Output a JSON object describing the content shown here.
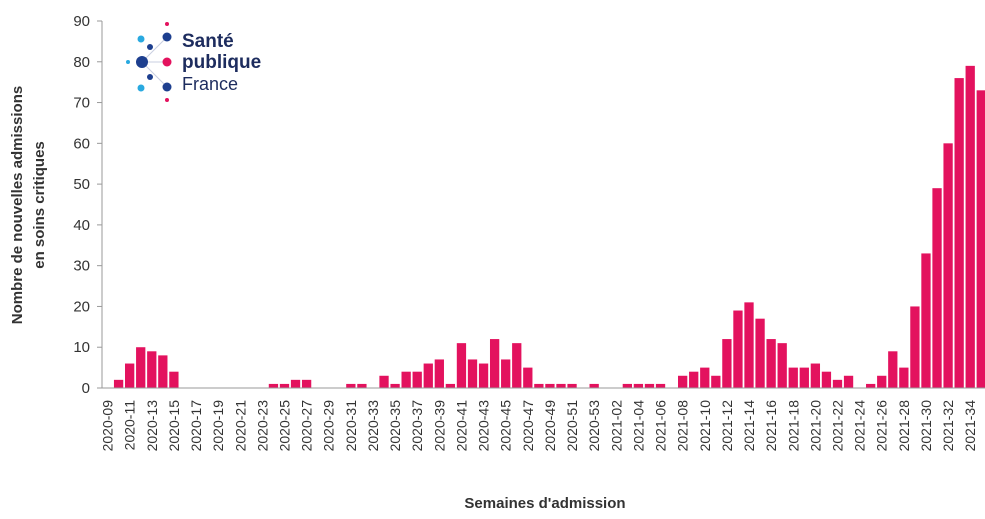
{
  "chart_data": {
    "type": "bar",
    "y_label": [
      "Nombre de nouvelles admissions",
      "en soins critiques"
    ],
    "x_label": "Semaines d'admission",
    "logo": [
      "Santé",
      "publique",
      "France"
    ],
    "color": "#e3125e",
    "categories": [
      "2020-09",
      null,
      "2020-11",
      null,
      "2020-13",
      null,
      "2020-15",
      null,
      "2020-17",
      null,
      "2020-19",
      null,
      "2020-21",
      null,
      "2020-23",
      null,
      "2020-25",
      null,
      "2020-27",
      null,
      "2020-29",
      null,
      "2020-31",
      null,
      "2020-33",
      null,
      "2020-35",
      null,
      "2020-37",
      null,
      "2020-39",
      null,
      "2020-41",
      null,
      "2020-43",
      null,
      "2020-45",
      null,
      "2020-47",
      null,
      "2020-49",
      null,
      "2020-51",
      null,
      "2020-53",
      null,
      "2021-02",
      null,
      "2021-04",
      null,
      "2021-06",
      null,
      "2021-08",
      null,
      "2021-10",
      null,
      "2021-12",
      null,
      "2021-14",
      null,
      "2021-16",
      null,
      "2021-18",
      null,
      "2021-20",
      null,
      "2021-22",
      null,
      "2021-24",
      null,
      "2021-26",
      null,
      "2021-28",
      null,
      "2021-30",
      null,
      "2021-32",
      null,
      "2021-34",
      null
    ],
    "values": [
      0,
      2,
      6,
      10,
      9,
      8,
      4,
      0,
      0,
      0,
      0,
      0,
      0,
      0,
      0,
      1,
      1,
      2,
      2,
      0,
      0,
      0,
      1,
      1,
      0,
      3,
      1,
      4,
      4,
      6,
      7,
      1,
      11,
      7,
      6,
      12,
      7,
      11,
      5,
      1,
      1,
      1,
      1,
      0,
      1,
      0,
      0,
      1,
      1,
      1,
      1,
      0,
      3,
      4,
      5,
      3,
      12,
      19,
      21,
      17,
      12,
      11,
      5,
      5,
      6,
      4,
      2,
      3,
      0,
      1,
      3,
      9,
      5,
      20,
      33,
      49,
      60,
      76,
      79,
      73
    ],
    "ylim": [
      0,
      90
    ],
    "yticks": [
      0,
      10,
      20,
      30,
      40,
      50,
      60,
      70,
      80,
      90
    ]
  }
}
